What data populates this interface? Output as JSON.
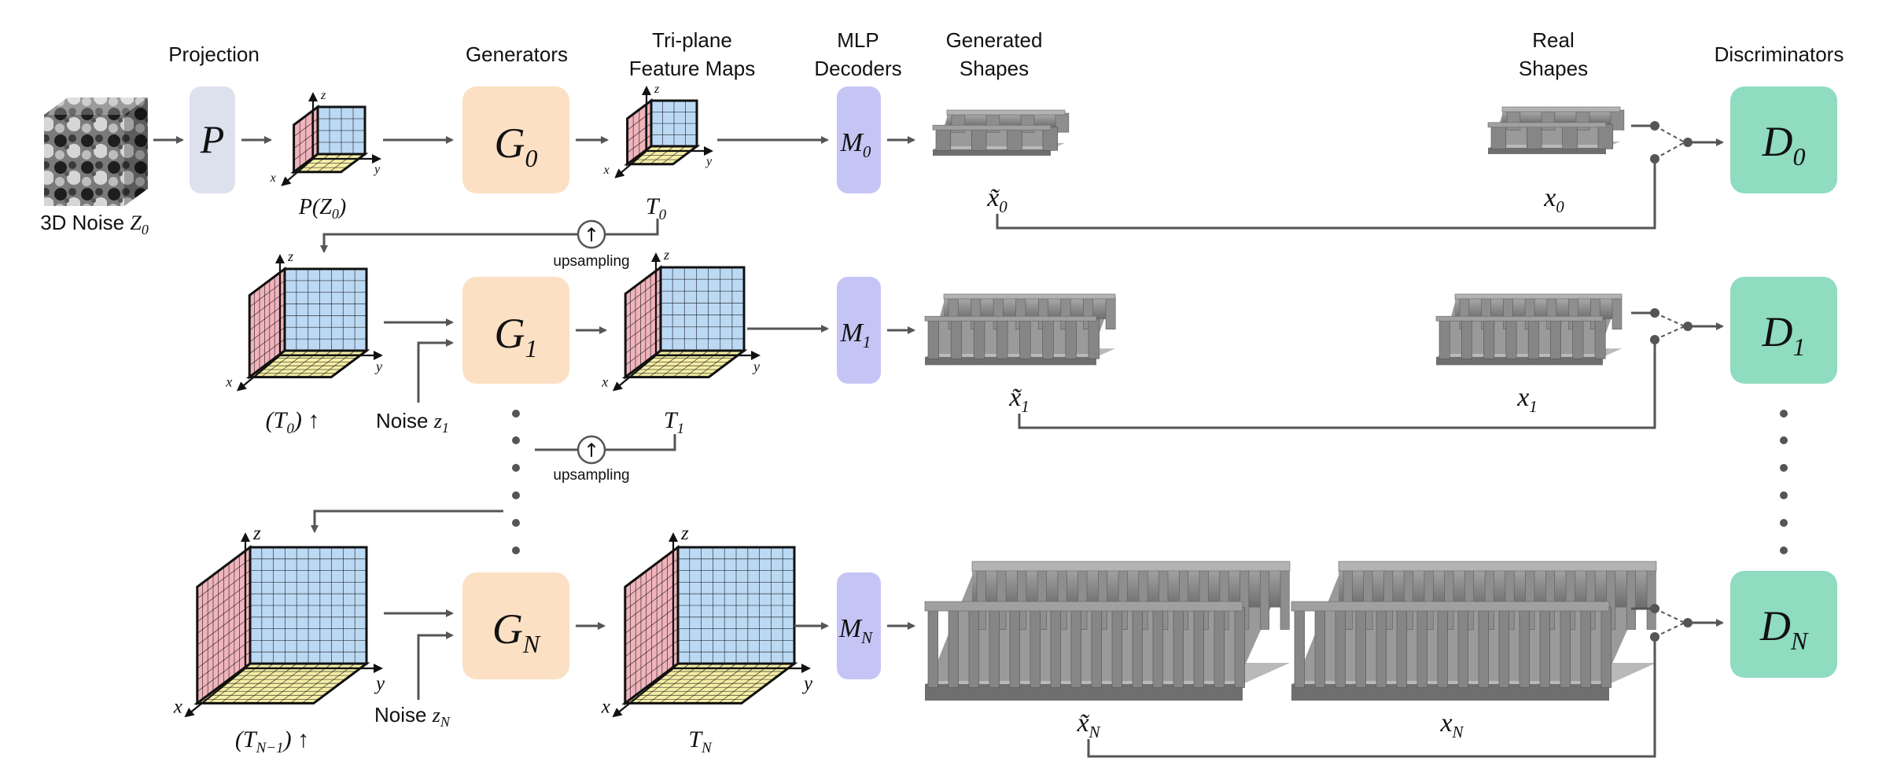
{
  "headers": {
    "projection": "Projection",
    "generators": "Generators",
    "triplane_1": "Tri-plane",
    "triplane_2": "Feature Maps",
    "mlp_1": "MLP",
    "mlp_2": "Decoders",
    "gen_shapes_1": "Generated",
    "gen_shapes_2": "Shapes",
    "real_shapes_1": "Real",
    "real_shapes_2": "Shapes",
    "discriminators": "Discriminators"
  },
  "noise": {
    "label": "3D Noise ",
    "symbol": "Z",
    "sub": "0"
  },
  "projection_block": {
    "symbol": "P"
  },
  "tri_labels": {
    "p_z0": {
      "a": "P(Z",
      "sub": "0",
      "b": ")"
    },
    "t0": {
      "sym": "T",
      "sub": "0"
    },
    "t0_up": {
      "a": "(T",
      "sub": "0",
      "b": ") ↑"
    },
    "t1": {
      "sym": "T",
      "sub": "1"
    },
    "tn1_up": {
      "a": "(T",
      "sub": "N−1",
      "b": ") ↑"
    },
    "tn": {
      "sym": "T",
      "sub": "N"
    }
  },
  "axes": {
    "x": "x",
    "y": "y",
    "z": "z"
  },
  "generators": [
    {
      "sym": "G",
      "sub": "0"
    },
    {
      "sym": "G",
      "sub": "1"
    },
    {
      "sym": "G",
      "sub": "N"
    }
  ],
  "decoders": [
    {
      "sym": "M",
      "sub": "0"
    },
    {
      "sym": "M",
      "sub": "1"
    },
    {
      "sym": "M",
      "sub": "N"
    }
  ],
  "discriminators": [
    {
      "sym": "D",
      "sub": "0"
    },
    {
      "sym": "D",
      "sub": "1"
    },
    {
      "sym": "D",
      "sub": "N"
    }
  ],
  "noise_inputs": [
    {
      "label": "Noise ",
      "sym": "z",
      "sub": "1"
    },
    {
      "label": "Noise ",
      "sym": "z",
      "sub": "N"
    }
  ],
  "upsampling": {
    "label": "upsampling",
    "symbol": "↑"
  },
  "generated_labels": [
    {
      "sym": "x̃",
      "sub": "0"
    },
    {
      "sym": "x̃",
      "sub": "1"
    },
    {
      "sym": "x̃",
      "sub": "N"
    }
  ],
  "real_labels": [
    {
      "sym": "x",
      "sub": "0"
    },
    {
      "sym": "x",
      "sub": "1"
    },
    {
      "sym": "x",
      "sub": "N"
    }
  ],
  "colors": {
    "projection_block": "#dde1ee",
    "generator_block": "#fbe0c3",
    "decoder_block": "#c5c5f5",
    "discriminator_block": "#8fdcc0",
    "plane_xy": "#f6efa6",
    "plane_xz": "#f0b4bc",
    "plane_yz": "#bcd9f4",
    "shape": "#8a8a8a",
    "wire": "#555555"
  }
}
